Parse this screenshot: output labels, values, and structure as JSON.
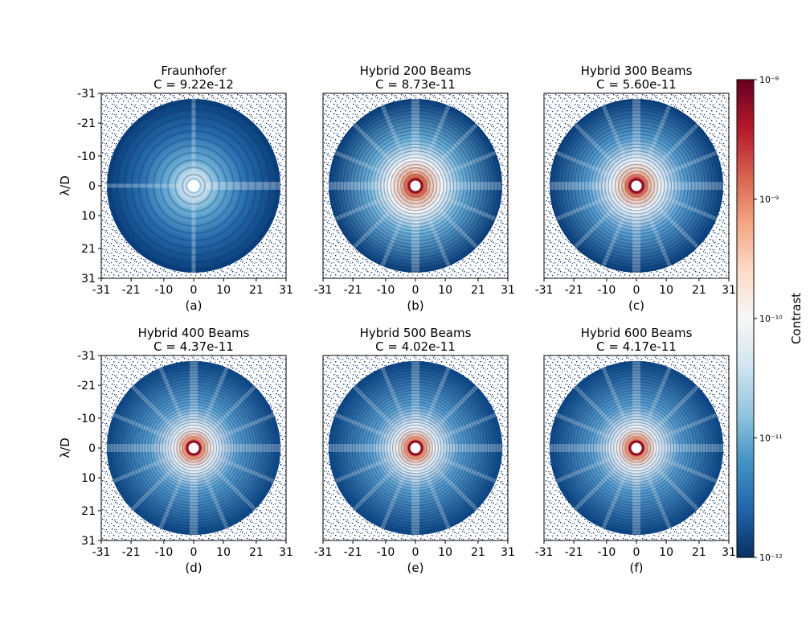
{
  "chart_data": {
    "type": "heatmap",
    "colormap": "RdBu_r",
    "tick_labels": [
      "-31",
      "-21",
      "-10",
      "0",
      "10",
      "21",
      "31"
    ],
    "tick_values": [
      -31,
      -21,
      -10,
      0,
      10,
      21,
      31
    ],
    "axis_range": [
      -31,
      31
    ],
    "ylabel": "λ/D",
    "colorbar": {
      "label": "Contrast",
      "scale": "log",
      "range": [
        1e-12,
        1e-08
      ],
      "tick_values": [
        1e-12,
        1e-11,
        1e-10,
        1e-09,
        1e-08
      ],
      "tick_labels": [
        "10⁻¹²",
        "10⁻¹¹",
        "10⁻¹⁰",
        "10⁻⁹",
        "10⁻⁸"
      ]
    },
    "panels": [
      {
        "title": "Fraunhofer",
        "contrast_label": "C = 9.22e-12",
        "sublabel": "(a)",
        "contrast": 9.22e-12,
        "beams": 0
      },
      {
        "title": "Hybrid 200 Beams",
        "contrast_label": "C = 8.73e-11",
        "sublabel": "(b)",
        "contrast": 8.73e-11,
        "beams": 200
      },
      {
        "title": "Hybrid 300 Beams",
        "contrast_label": "C = 5.60e-11",
        "sublabel": "(c)",
        "contrast": 5.6e-11,
        "beams": 300
      },
      {
        "title": "Hybrid 400 Beams",
        "contrast_label": "C = 4.37e-11",
        "sublabel": "(d)",
        "contrast": 4.37e-11,
        "beams": 400
      },
      {
        "title": "Hybrid 500 Beams",
        "contrast_label": "C = 4.02e-11",
        "sublabel": "(e)",
        "contrast": 4.02e-11,
        "beams": 500
      },
      {
        "title": "Hybrid 600 Beams",
        "contrast_label": "C = 4.17e-11",
        "sublabel": "(f)",
        "contrast": 4.17e-11,
        "beams": 600
      }
    ]
  }
}
